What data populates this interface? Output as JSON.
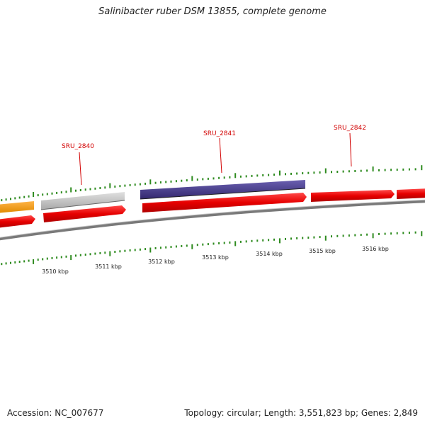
{
  "title": "Salinibacter ruber DSM 13855, complete genome",
  "accession": "Accession: NC_007677",
  "summary": "Topology: circular; Length: 3,551,823 bp; Genes: 2,849",
  "colors": {
    "tick": "#2e8b1f",
    "label": "#d20000",
    "backbone": "#7a7a7a",
    "gene_red": "#e60000",
    "gene_orange": "#f39c12",
    "gene_gray": "#bdbdbd",
    "gene_purple": "#4b3f8f"
  },
  "gene_labels": [
    {
      "id": "sru2840",
      "text": "SRU_2840"
    },
    {
      "id": "sru2841",
      "text": "SRU_2841"
    },
    {
      "id": "sru2842",
      "text": "SRU_2842"
    }
  ],
  "kbp_labels": [
    "3510 kbp",
    "3511 kbp",
    "3512 kbp",
    "3513 kbp",
    "3514 kbp",
    "3515 kbp",
    "3516 kbp"
  ]
}
